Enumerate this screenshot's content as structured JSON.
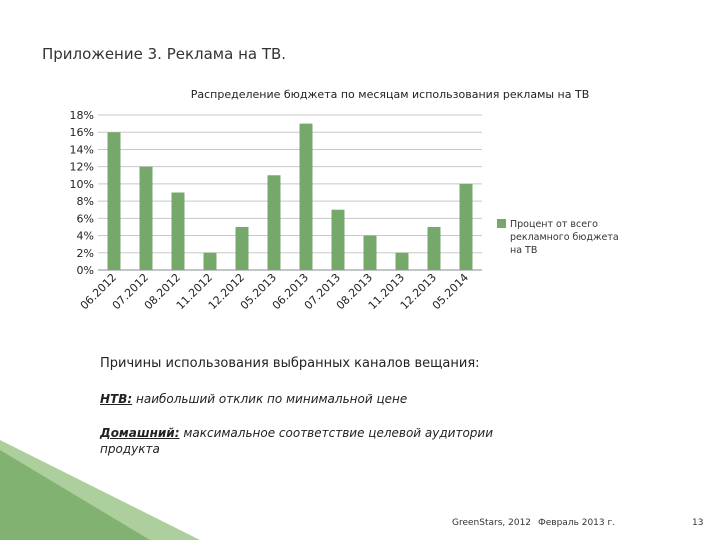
{
  "slide": {
    "title": "Приложение 3. Реклама на ТВ."
  },
  "chart_data": {
    "type": "bar",
    "title": "Распределение бюджета по месяцам использования рекламы на ТВ",
    "categories": [
      "06.2012",
      "07.2012",
      "08.2012",
      "11.2012",
      "12.2012",
      "05.2013",
      "06.2013",
      "07.2013",
      "08.2013",
      "11.2013",
      "12.2013",
      "05.2014"
    ],
    "series": [
      {
        "name": "Процент от всего рекламного бюджета на ТВ",
        "values": [
          16,
          12,
          9,
          2,
          5,
          11,
          17,
          7,
          4,
          2,
          5,
          10
        ]
      }
    ],
    "ylim": [
      0,
      18
    ],
    "yticks": [
      "0%",
      "2%",
      "4%",
      "6%",
      "8%",
      "10%",
      "12%",
      "14%",
      "16%",
      "18%"
    ],
    "grid": true,
    "legend_position": "right",
    "bar_color": "#77a86b"
  },
  "reasons": {
    "title": "Причины использования выбранных каналов вещания:",
    "items": [
      {
        "channel": "НТВ:",
        "text": "наибольший отклик по минимальной цене"
      },
      {
        "channel": "Домашний:",
        "text": "максимальное соответствие целевой аудитории продукта"
      }
    ]
  },
  "footer": {
    "company": "GreenStars, 2012",
    "date": "Февраль 2013 г.",
    "page": "13"
  }
}
